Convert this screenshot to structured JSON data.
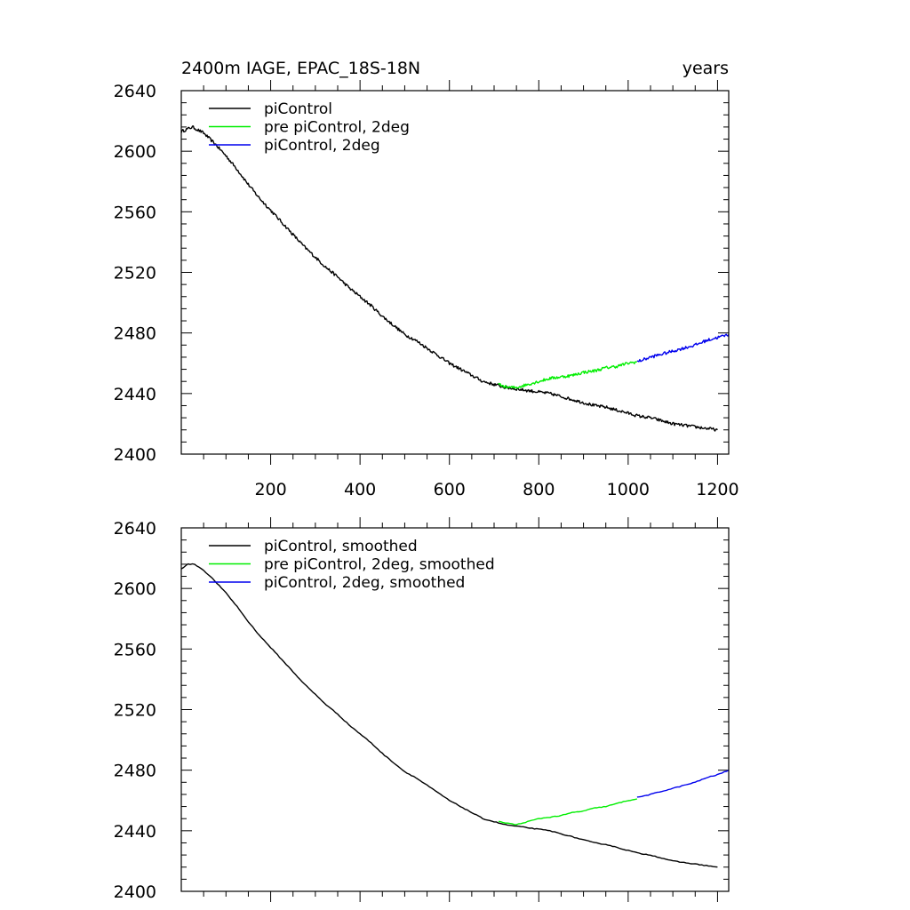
{
  "chart_data": [
    {
      "type": "line",
      "title": "2400m IAGE, EPAC_18S-18N",
      "right_title": "years",
      "xlim": [
        0,
        1225
      ],
      "ylim": [
        2400,
        2640
      ],
      "xticks": [
        200,
        400,
        600,
        800,
        1000,
        1200
      ],
      "xtick_labels": [
        "200",
        "400",
        "600",
        "800",
        "1000",
        "1200"
      ],
      "yticks": [
        2400,
        2440,
        2480,
        2520,
        2560,
        2600,
        2640
      ],
      "ytick_labels": [
        "2400",
        "2440",
        "2480",
        "2520",
        "2560",
        "2600",
        "2640"
      ],
      "legend_position": "top-left",
      "noisy": true,
      "series": [
        {
          "name": "piControl",
          "color": "#000000",
          "x": [
            0,
            25,
            50,
            75,
            100,
            125,
            150,
            175,
            200,
            225,
            250,
            275,
            300,
            325,
            350,
            375,
            400,
            425,
            450,
            475,
            500,
            525,
            550,
            575,
            600,
            625,
            650,
            675,
            700,
            725,
            750,
            775,
            800,
            825,
            850,
            875,
            900,
            925,
            950,
            975,
            1000,
            1025,
            1050,
            1075,
            1100,
            1125,
            1150,
            1175,
            1200
          ],
          "values": [
            2613,
            2616,
            2612,
            2605,
            2597,
            2588,
            2578,
            2569,
            2561,
            2553,
            2545,
            2537,
            2530,
            2523,
            2517,
            2510,
            2504,
            2498,
            2491,
            2485,
            2479,
            2475,
            2470,
            2465,
            2460,
            2456,
            2452,
            2448,
            2446,
            2444,
            2443,
            2442,
            2441,
            2440,
            2438,
            2436,
            2434,
            2432,
            2431,
            2429,
            2427,
            2425,
            2424,
            2422,
            2420,
            2419,
            2418,
            2417,
            2416
          ]
        },
        {
          "name": "pre piControl, 2deg",
          "color": "#00ee00",
          "x": [
            710,
            730,
            750,
            775,
            800,
            825,
            850,
            875,
            900,
            925,
            950,
            975,
            1000,
            1020
          ],
          "values": [
            2446,
            2444,
            2444,
            2446,
            2448,
            2450,
            2451,
            2452,
            2454,
            2455,
            2457,
            2458,
            2460,
            2461
          ]
        },
        {
          "name": "piControl, 2deg",
          "color": "#0000ee",
          "x": [
            1020,
            1050,
            1075,
            1100,
            1125,
            1150,
            1175,
            1200,
            1225
          ],
          "values": [
            2461,
            2464,
            2466,
            2468,
            2470,
            2472,
            2475,
            2477,
            2479
          ]
        }
      ]
    },
    {
      "type": "line",
      "title": "",
      "xlim": [
        0,
        1225
      ],
      "ylim": [
        2400,
        2640
      ],
      "xticks": [
        200,
        400,
        600,
        800,
        1000,
        1200
      ],
      "xtick_labels": [],
      "yticks": [
        2400,
        2440,
        2480,
        2520,
        2560,
        2600,
        2640
      ],
      "ytick_labels": [
        "2400",
        "2440",
        "2480",
        "2520",
        "2560",
        "2600",
        "2640"
      ],
      "legend_position": "top-left",
      "noisy": false,
      "series": [
        {
          "name": "piControl, smoothed",
          "color": "#000000",
          "x": [
            0,
            15,
            30,
            50,
            75,
            100,
            125,
            150,
            175,
            200,
            225,
            250,
            275,
            300,
            325,
            350,
            375,
            400,
            425,
            450,
            475,
            500,
            525,
            550,
            575,
            600,
            625,
            650,
            675,
            700,
            725,
            750,
            775,
            800,
            825,
            850,
            875,
            900,
            925,
            950,
            975,
            1000,
            1025,
            1050,
            1075,
            1100,
            1125,
            1150,
            1175,
            1200
          ],
          "values": [
            2613,
            2616,
            2616,
            2612,
            2605,
            2597,
            2588,
            2578,
            2569,
            2561,
            2553,
            2545,
            2537,
            2530,
            2523,
            2517,
            2510,
            2504,
            2498,
            2491,
            2485,
            2479,
            2475,
            2470,
            2465,
            2460,
            2456,
            2452,
            2448,
            2446,
            2444,
            2443,
            2442,
            2441,
            2440,
            2438,
            2436,
            2434,
            2432,
            2431,
            2429,
            2427,
            2425,
            2424,
            2422,
            2420,
            2419,
            2418,
            2417,
            2416
          ]
        },
        {
          "name": "pre piControl, 2deg, smoothed",
          "color": "#00ee00",
          "x": [
            710,
            730,
            750,
            775,
            800,
            825,
            850,
            875,
            900,
            925,
            950,
            975,
            1000,
            1020
          ],
          "values": [
            2446,
            2445,
            2444,
            2446,
            2448,
            2449,
            2450,
            2452,
            2453,
            2455,
            2456,
            2458,
            2460,
            2461
          ]
        },
        {
          "name": "piControl, 2deg, smoothed",
          "color": "#0000ee",
          "x": [
            1020,
            1050,
            1075,
            1100,
            1125,
            1150,
            1175,
            1200,
            1225
          ],
          "values": [
            2462,
            2464,
            2466,
            2468,
            2470,
            2472,
            2475,
            2477,
            2480
          ]
        }
      ]
    }
  ]
}
